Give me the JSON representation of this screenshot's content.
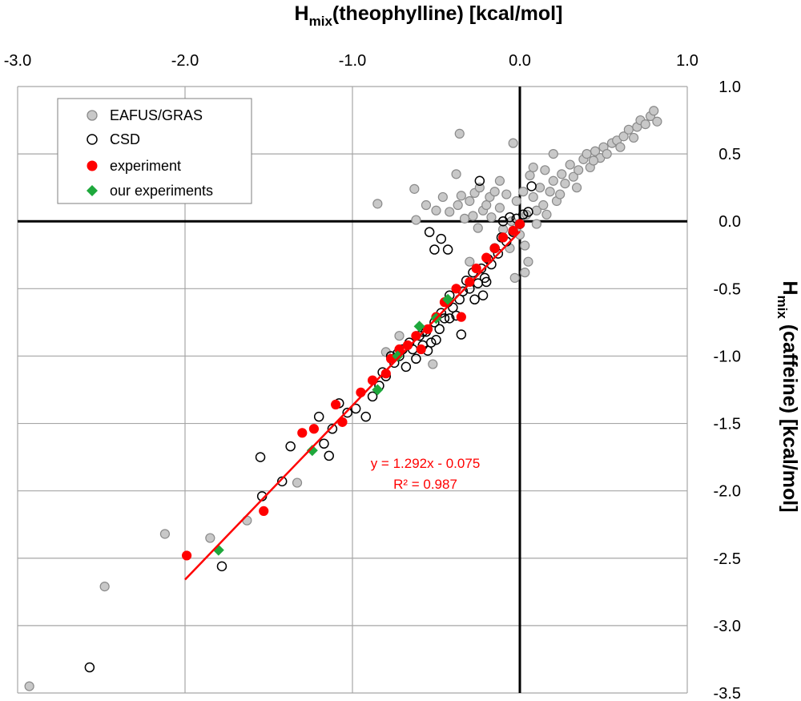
{
  "chart_data": {
    "type": "scatter",
    "title": "",
    "xlabel": {
      "main": "H",
      "sub": "mix",
      "rest": "(theophylline) [kcal/mol]"
    },
    "ylabel": {
      "main": "H",
      "sub": "mix",
      "rest": " (caffeine)  [kcal/mol]"
    },
    "xlim": [
      -3.0,
      1.0
    ],
    "ylim": [
      -3.5,
      1.0
    ],
    "x_ticks": [
      "-3.0",
      "-2.0",
      "-1.0",
      "0.0",
      "1.0"
    ],
    "y_ticks": [
      "1.0",
      "0.5",
      "0.0",
      "-0.5",
      "-1.0",
      "-1.5",
      "-2.0",
      "-2.5",
      "-3.0",
      "-3.5"
    ],
    "grid": true,
    "legend_position": "top-left",
    "trendline": {
      "color": "#ff0000",
      "slope": 1.292,
      "intercept": -0.075,
      "x_range": [
        -2.0,
        0.0
      ],
      "equation": "y = 1.292x - 0.075",
      "r2": "R² = 0.987"
    },
    "series": [
      {
        "name": "EAFUS/GRAS",
        "marker": "circle-filled",
        "color": "#c8c8c8",
        "stroke": "#8a8a8a",
        "points": [
          [
            -2.93,
            -3.45
          ],
          [
            -2.48,
            -2.71
          ],
          [
            -2.12,
            -2.32
          ],
          [
            -1.85,
            -2.35
          ],
          [
            -1.63,
            -2.22
          ],
          [
            -1.33,
            -1.94
          ],
          [
            -0.85,
            0.13
          ],
          [
            -0.63,
            0.24
          ],
          [
            -0.62,
            0.01
          ],
          [
            -0.52,
            -1.06
          ],
          [
            -0.5,
            0.08
          ],
          [
            -0.42,
            0.07
          ],
          [
            -0.38,
            0.35
          ],
          [
            -0.37,
            0.12
          ],
          [
            -0.36,
            0.65
          ],
          [
            -0.35,
            0.19
          ],
          [
            -0.33,
            0.02
          ],
          [
            -0.3,
            0.15
          ],
          [
            -0.28,
            0.04
          ],
          [
            -0.27,
            0.21
          ],
          [
            -0.25,
            -0.05
          ],
          [
            -0.22,
            0.08
          ],
          [
            -0.2,
            0.12
          ],
          [
            -0.18,
            0.18
          ],
          [
            -0.17,
            0.03
          ],
          [
            -0.15,
            0.22
          ],
          [
            -0.12,
            0.1
          ],
          [
            -0.1,
            -0.06
          ],
          [
            -0.08,
            0.2
          ],
          [
            -0.05,
            0.0
          ],
          [
            -0.04,
            0.58
          ],
          [
            -0.03,
            -0.42
          ],
          [
            -0.02,
            0.15
          ],
          [
            0.0,
            -0.1
          ],
          [
            0.02,
            0.22
          ],
          [
            0.04,
            0.05
          ],
          [
            0.05,
            -0.3
          ],
          [
            0.06,
            0.34
          ],
          [
            0.08,
            0.18
          ],
          [
            0.1,
            0.08
          ],
          [
            0.12,
            0.25
          ],
          [
            0.14,
            0.12
          ],
          [
            0.15,
            0.38
          ],
          [
            0.18,
            0.22
          ],
          [
            0.2,
            0.3
          ],
          [
            0.22,
            0.15
          ],
          [
            0.25,
            0.35
          ],
          [
            0.27,
            0.28
          ],
          [
            0.3,
            0.42
          ],
          [
            0.32,
            0.33
          ],
          [
            0.35,
            0.38
          ],
          [
            0.38,
            0.46
          ],
          [
            0.4,
            0.5
          ],
          [
            0.42,
            0.4
          ],
          [
            0.45,
            0.52
          ],
          [
            0.48,
            0.47
          ],
          [
            0.5,
            0.55
          ],
          [
            0.52,
            0.5
          ],
          [
            0.55,
            0.58
          ],
          [
            0.58,
            0.6
          ],
          [
            0.6,
            0.55
          ],
          [
            0.62,
            0.63
          ],
          [
            0.65,
            0.68
          ],
          [
            0.68,
            0.62
          ],
          [
            0.7,
            0.7
          ],
          [
            0.72,
            0.75
          ],
          [
            0.75,
            0.72
          ],
          [
            0.78,
            0.78
          ],
          [
            0.8,
            0.82
          ],
          [
            0.82,
            0.74
          ],
          [
            -0.02,
            -0.05
          ],
          [
            0.03,
            -0.18
          ],
          [
            -0.06,
            -0.2
          ],
          [
            0.1,
            -0.02
          ],
          [
            0.16,
            0.05
          ],
          [
            0.24,
            0.2
          ],
          [
            0.34,
            0.25
          ],
          [
            0.44,
            0.45
          ],
          [
            -0.12,
            0.3
          ],
          [
            -0.24,
            0.25
          ],
          [
            -0.46,
            0.18
          ],
          [
            -0.56,
            0.12
          ],
          [
            0.08,
            0.4
          ],
          [
            0.2,
            0.5
          ],
          [
            -0.8,
            -0.97
          ],
          [
            -0.72,
            -0.85
          ],
          [
            -0.3,
            -0.3
          ],
          [
            0.03,
            -0.38
          ]
        ]
      },
      {
        "name": "CSD",
        "marker": "circle-open",
        "color": "#000000",
        "points": [
          [
            -2.57,
            -3.31
          ],
          [
            -1.78,
            -2.56
          ],
          [
            -1.55,
            -1.75
          ],
          [
            -1.54,
            -2.04
          ],
          [
            -1.42,
            -1.93
          ],
          [
            -1.37,
            -1.67
          ],
          [
            -1.2,
            -1.45
          ],
          [
            -1.17,
            -1.65
          ],
          [
            -1.14,
            -1.74
          ],
          [
            -1.08,
            -1.35
          ],
          [
            -1.03,
            -1.42
          ],
          [
            -0.98,
            -1.39
          ],
          [
            -0.92,
            -1.45
          ],
          [
            -0.88,
            -1.3
          ],
          [
            -0.84,
            -1.22
          ],
          [
            -0.8,
            -1.15
          ],
          [
            -0.77,
            -1.0
          ],
          [
            -0.75,
            -1.05
          ],
          [
            -0.73,
            -0.98
          ],
          [
            -0.7,
            -0.95
          ],
          [
            -0.68,
            -1.08
          ],
          [
            -0.66,
            -0.9
          ],
          [
            -0.64,
            -0.95
          ],
          [
            -0.62,
            -1.02
          ],
          [
            -0.6,
            -0.85
          ],
          [
            -0.58,
            -0.92
          ],
          [
            -0.56,
            -0.82
          ],
          [
            -0.55,
            -0.96
          ],
          [
            -0.53,
            -0.9
          ],
          [
            -0.51,
            -0.75
          ],
          [
            -0.5,
            -0.88
          ],
          [
            -0.48,
            -0.8
          ],
          [
            -0.47,
            -0.68
          ],
          [
            -0.45,
            -0.72
          ],
          [
            -0.43,
            -0.6
          ],
          [
            -0.42,
            -0.55
          ],
          [
            -0.4,
            -0.64
          ],
          [
            -0.38,
            -0.7
          ],
          [
            -0.36,
            -0.58
          ],
          [
            -0.34,
            -0.52
          ],
          [
            -0.32,
            -0.44
          ],
          [
            -0.3,
            -0.5
          ],
          [
            -0.28,
            -0.38
          ],
          [
            -0.27,
            -0.58
          ],
          [
            -0.25,
            -0.46
          ],
          [
            -0.23,
            -0.35
          ],
          [
            -0.21,
            -0.42
          ],
          [
            -0.19,
            -0.28
          ],
          [
            -0.17,
            -0.32
          ],
          [
            -0.15,
            -0.2
          ],
          [
            -0.13,
            -0.24
          ],
          [
            -0.11,
            -0.12
          ],
          [
            -0.1,
            0.0
          ],
          [
            -0.08,
            -0.15
          ],
          [
            -0.06,
            0.03
          ],
          [
            -0.04,
            -0.08
          ],
          [
            -0.02,
            0.02
          ],
          [
            0.0,
            -0.02
          ],
          [
            0.05,
            0.07
          ],
          [
            0.07,
            0.26
          ],
          [
            -0.24,
            0.3
          ],
          [
            -0.51,
            -0.21
          ],
          [
            -0.47,
            -0.13
          ],
          [
            -0.54,
            -0.08
          ],
          [
            -0.43,
            -0.21
          ],
          [
            -0.2,
            -0.45
          ],
          [
            -0.35,
            -0.84
          ],
          [
            -0.42,
            -0.72
          ],
          [
            -0.58,
            -0.82
          ],
          [
            -0.72,
            -1.0
          ],
          [
            -0.82,
            -1.12
          ],
          [
            -1.12,
            -1.54
          ],
          [
            -0.22,
            -0.55
          ],
          [
            0.02,
            0.05
          ]
        ]
      },
      {
        "name": "experiment",
        "marker": "circle-filled",
        "color": "#ff0000",
        "stroke": "#ff0000",
        "points": [
          [
            -1.99,
            -2.48
          ],
          [
            -1.53,
            -2.15
          ],
          [
            -1.3,
            -1.57
          ],
          [
            -1.23,
            -1.54
          ],
          [
            -1.1,
            -1.36
          ],
          [
            -1.06,
            -1.49
          ],
          [
            -0.95,
            -1.27
          ],
          [
            -0.88,
            -1.18
          ],
          [
            -0.8,
            -1.13
          ],
          [
            -0.77,
            -1.02
          ],
          [
            -0.72,
            -0.95
          ],
          [
            -0.67,
            -0.92
          ],
          [
            -0.62,
            -0.85
          ],
          [
            -0.59,
            -0.95
          ],
          [
            -0.55,
            -0.8
          ],
          [
            -0.5,
            -0.71
          ],
          [
            -0.45,
            -0.6
          ],
          [
            -0.38,
            -0.5
          ],
          [
            -0.35,
            -0.71
          ],
          [
            -0.3,
            -0.45
          ],
          [
            -0.26,
            -0.35
          ],
          [
            -0.2,
            -0.27
          ],
          [
            -0.15,
            -0.2
          ],
          [
            -0.1,
            -0.12
          ],
          [
            0.0,
            -0.02
          ],
          [
            -0.04,
            -0.07
          ]
        ]
      },
      {
        "name": "our experiments",
        "marker": "diamond",
        "color": "#1ea83c",
        "points": [
          [
            -1.8,
            -2.44
          ],
          [
            -1.24,
            -1.7
          ],
          [
            -0.85,
            -1.25
          ],
          [
            -0.73,
            -1.0
          ],
          [
            -0.6,
            -0.78
          ],
          [
            -0.5,
            -0.72
          ],
          [
            -0.43,
            -0.58
          ]
        ]
      }
    ]
  }
}
